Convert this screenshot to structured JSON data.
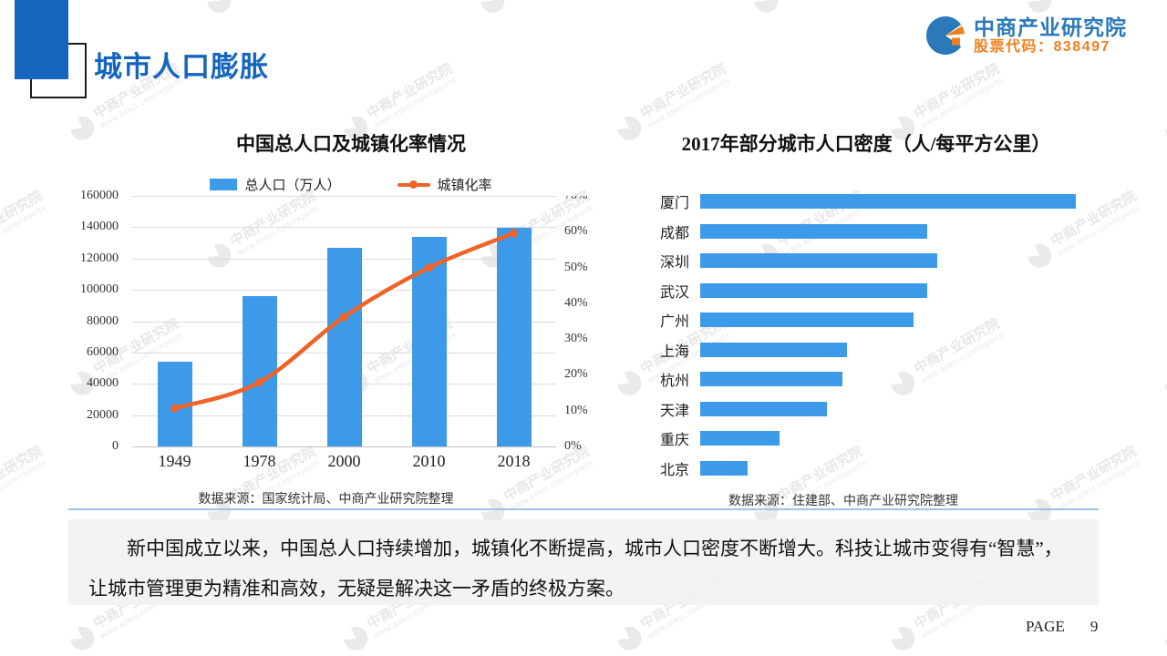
{
  "header": {
    "title": "城市人口膨胀",
    "brand": {
      "name": "中商产业研究院",
      "stock_code": "股票代码：838497"
    }
  },
  "watermark": {
    "line1": "中商产业研究院",
    "line2": "www.askci.com/reports"
  },
  "chart_data": [
    {
      "type": "bar+line",
      "title": "中国总人口及城镇化率情况",
      "categories": [
        "1949",
        "1978",
        "2000",
        "2010",
        "2018"
      ],
      "series": [
        {
          "name": "总人口（万人）",
          "type": "bar",
          "axis": "left",
          "color": "#3D9AE8",
          "values": [
            54167,
            96259,
            126743,
            134091,
            139538
          ]
        },
        {
          "name": "城镇化率",
          "type": "line",
          "axis": "right",
          "color": "#ED6328",
          "unit": "%",
          "values": [
            10.64,
            17.92,
            36.22,
            49.95,
            59.58
          ]
        }
      ],
      "left_axis": {
        "min": 0,
        "max": 160000,
        "step": 20000
      },
      "right_axis": {
        "min": 0,
        "max": 70,
        "step": 10,
        "suffix": "%"
      },
      "grid": true,
      "legend_position": "top",
      "source": "数据来源：国家统计局、中商产业研究院整理"
    },
    {
      "type": "bar",
      "orientation": "horizontal",
      "title": "2017年部分城市人口密度（人/每平方公里）",
      "categories": [
        "厦门",
        "成都",
        "深圳",
        "武汉",
        "广州",
        "上海",
        "杭州",
        "天津",
        "重庆",
        "北京"
      ],
      "values": [
        4120,
        2490,
        2600,
        2490,
        2340,
        1610,
        1560,
        1390,
        870,
        520
      ],
      "values_estimated": true,
      "xlim": [
        0,
        4500
      ],
      "bar_color": "#3D9AE8",
      "grid": false,
      "source": "数据来源：住建部、中商产业研究院整理"
    }
  ],
  "summary": {
    "text": "新中国成立以来，中国总人口持续增加，城镇化不断提高，城市人口密度不断增大。科技让城市变得有“智慧”，让城市管理更为精准和高效，无疑是解决这一矛盾的终极方案。"
  },
  "footer": {
    "page_label": "PAGE",
    "page_number": "9"
  },
  "colors": {
    "title_blue": "#1565BE",
    "bar_blue": "#3D9AE8",
    "line_orange": "#ED6328",
    "brand_blue": "#2B79BA",
    "brand_orange": "#F0801F",
    "separator_blue": "#9CC2E5",
    "summary_bg": "#F1F1F1"
  }
}
